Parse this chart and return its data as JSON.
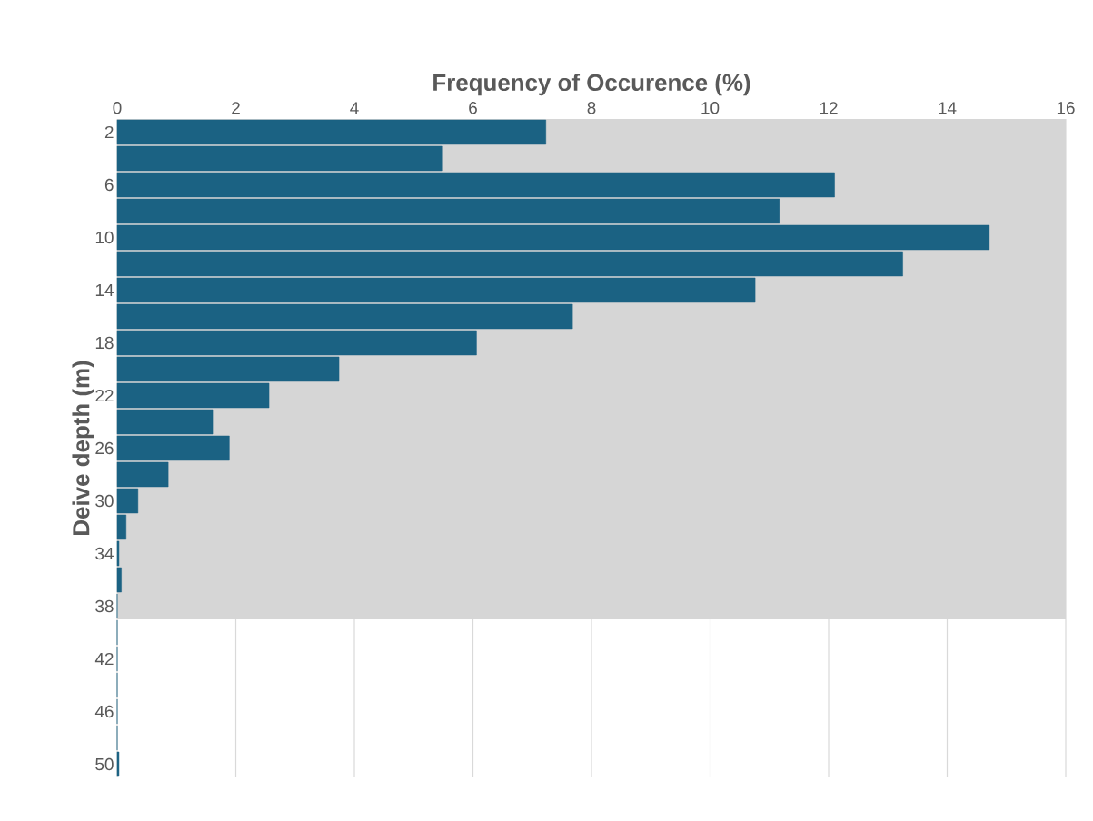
{
  "chart_data": {
    "type": "bar",
    "orientation": "horizontal",
    "xlabel": "Frequency of Occurence (%)",
    "ylabel": "Deive depth (m)",
    "categories": [
      "2",
      null,
      "6",
      null,
      "10",
      null,
      "14",
      null,
      "18",
      null,
      "22",
      null,
      "26",
      null,
      "30",
      null,
      "34",
      null,
      "38",
      null,
      "42",
      null,
      "46",
      null,
      "50"
    ],
    "values": [
      7.23,
      5.49,
      12.1,
      11.17,
      14.71,
      13.25,
      10.76,
      7.68,
      6.06,
      3.74,
      2.56,
      1.61,
      1.89,
      0.86,
      0.35,
      0.15,
      0.03,
      0.07,
      0,
      0,
      0,
      0,
      0,
      0,
      0.03
    ],
    "color": "#1b6283",
    "xlim": [
      0,
      16
    ],
    "xticks": [
      0,
      2,
      4,
      6,
      8,
      10,
      12,
      14,
      16
    ],
    "grid": "x",
    "bands": [
      {
        "axis": "y",
        "from": "2",
        "to": "38",
        "color": "#d6d6d6"
      }
    ]
  }
}
